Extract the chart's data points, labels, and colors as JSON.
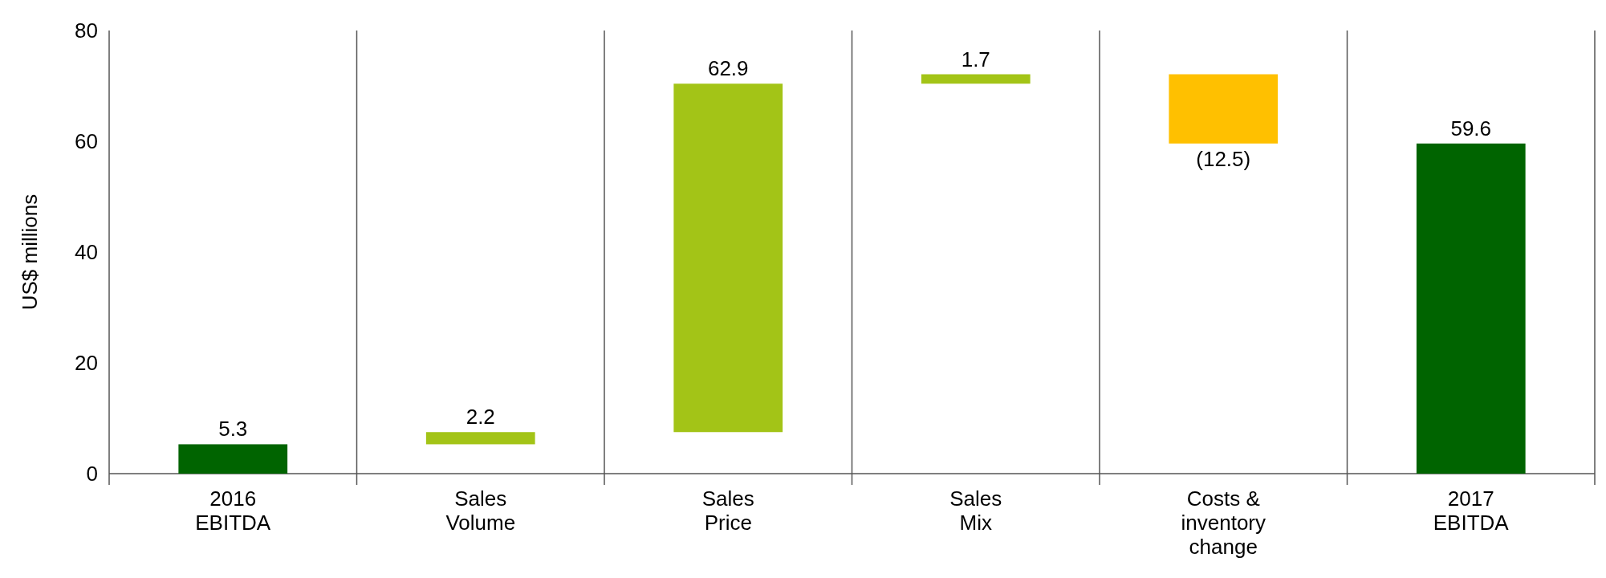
{
  "chart_data": {
    "type": "bar",
    "ylabel": "US$ millions",
    "categories": [
      "2016\nEBITDA",
      "Sales\nVolume",
      "Sales\nPrice",
      "Sales\nMix",
      "Costs &\ninventory\nchange",
      "2017\nEBITDA"
    ],
    "values": [
      5.3,
      2.2,
      62.9,
      1.7,
      -12.5,
      59.6
    ],
    "base": [
      0,
      5.3,
      7.5,
      70.4,
      72.1,
      0
    ],
    "colors": [
      "#006400",
      "#a3c417",
      "#a3c417",
      "#a3c417",
      "#ffc000",
      "#006400"
    ],
    "value_labels": [
      "5.3",
      "2.2",
      "62.9",
      "1.7",
      "(12.5)",
      "59.6"
    ],
    "ylim": [
      0,
      80
    ],
    "yticks": [
      0,
      20,
      40,
      60,
      80
    ],
    "grid": "x"
  }
}
